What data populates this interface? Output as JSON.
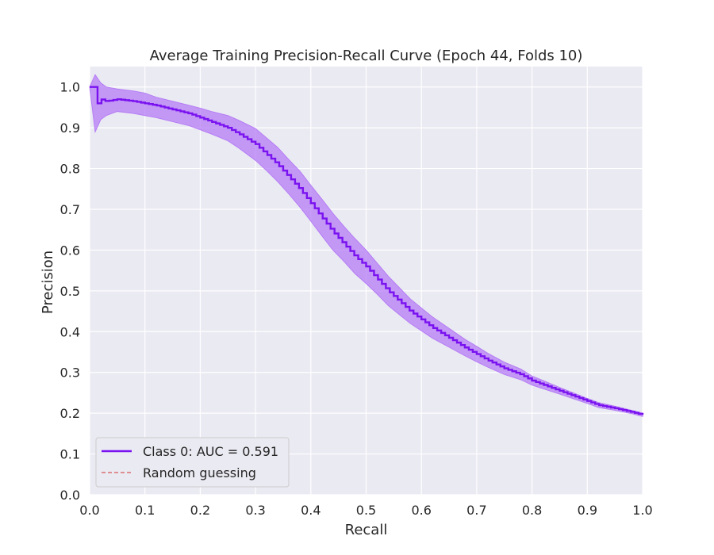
{
  "chart_data": {
    "type": "line",
    "title": "Average Training Precision-Recall Curve (Epoch 44, Folds 10)",
    "xlabel": "Recall",
    "ylabel": "Precision",
    "xlim": [
      0.0,
      1.0
    ],
    "ylim": [
      0.0,
      1.05
    ],
    "xticks": [
      "0.0",
      "0.1",
      "0.2",
      "0.3",
      "0.4",
      "0.5",
      "0.6",
      "0.7",
      "0.8",
      "0.9",
      "1.0"
    ],
    "yticks": [
      "0.0",
      "0.1",
      "0.2",
      "0.3",
      "0.4",
      "0.5",
      "0.6",
      "0.7",
      "0.8",
      "0.9",
      "1.0"
    ],
    "grid": true,
    "legend_position": "lower-left",
    "background_color": "#eaeaf2",
    "series": [
      {
        "name": "Class 0: AUC = 0.591",
        "color": "#7a12f0",
        "band_color": "#b57cf5",
        "style": "steps",
        "x": [
          0.0,
          0.01,
          0.02,
          0.03,
          0.05,
          0.08,
          0.1,
          0.12,
          0.15,
          0.18,
          0.2,
          0.22,
          0.25,
          0.27,
          0.3,
          0.32,
          0.34,
          0.36,
          0.38,
          0.4,
          0.42,
          0.44,
          0.46,
          0.48,
          0.5,
          0.52,
          0.54,
          0.56,
          0.58,
          0.6,
          0.62,
          0.65,
          0.68,
          0.7,
          0.72,
          0.75,
          0.78,
          0.8,
          0.82,
          0.85,
          0.88,
          0.9,
          0.92,
          0.95,
          0.98,
          1.0
        ],
        "y": [
          1.0,
          0.96,
          0.97,
          0.965,
          0.97,
          0.965,
          0.96,
          0.955,
          0.945,
          0.935,
          0.925,
          0.915,
          0.9,
          0.885,
          0.86,
          0.835,
          0.81,
          0.78,
          0.75,
          0.715,
          0.68,
          0.645,
          0.615,
          0.585,
          0.56,
          0.53,
          0.5,
          0.475,
          0.45,
          0.43,
          0.41,
          0.385,
          0.36,
          0.345,
          0.33,
          0.31,
          0.295,
          0.28,
          0.27,
          0.255,
          0.24,
          0.23,
          0.22,
          0.212,
          0.203,
          0.196
        ],
        "y_upper": [
          1.0,
          1.03,
          1.01,
          1.0,
          0.995,
          0.99,
          0.985,
          0.975,
          0.965,
          0.955,
          0.948,
          0.94,
          0.93,
          0.918,
          0.898,
          0.875,
          0.852,
          0.822,
          0.794,
          0.759,
          0.725,
          0.69,
          0.658,
          0.628,
          0.6,
          0.568,
          0.536,
          0.508,
          0.48,
          0.458,
          0.436,
          0.408,
          0.38,
          0.364,
          0.347,
          0.325,
          0.308,
          0.291,
          0.28,
          0.263,
          0.247,
          0.236,
          0.226,
          0.217,
          0.207,
          0.2
        ],
        "y_lower": [
          1.0,
          0.89,
          0.92,
          0.93,
          0.94,
          0.935,
          0.93,
          0.925,
          0.915,
          0.905,
          0.895,
          0.885,
          0.868,
          0.85,
          0.82,
          0.795,
          0.768,
          0.738,
          0.706,
          0.671,
          0.635,
          0.6,
          0.572,
          0.542,
          0.518,
          0.492,
          0.464,
          0.442,
          0.42,
          0.402,
          0.384,
          0.362,
          0.34,
          0.326,
          0.313,
          0.295,
          0.282,
          0.269,
          0.26,
          0.247,
          0.233,
          0.224,
          0.214,
          0.207,
          0.199,
          0.192
        ]
      },
      {
        "name": "Random guessing",
        "color": "#d9706f",
        "style": "dashed",
        "x": [],
        "y": []
      }
    ]
  }
}
